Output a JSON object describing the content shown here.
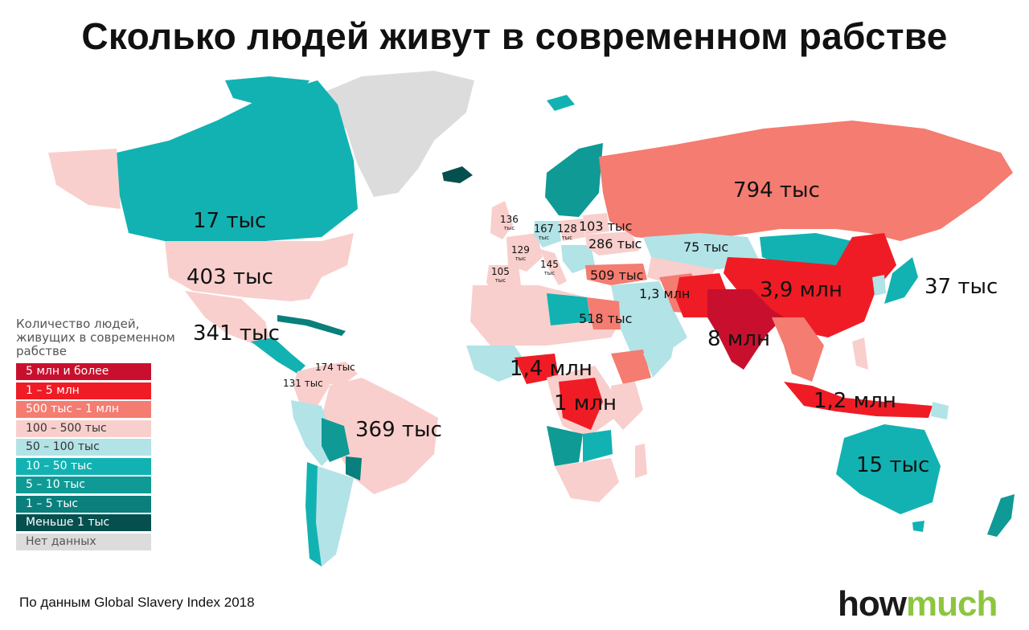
{
  "title": "Сколько людей живут в современном рабстве",
  "source": "По данным Global Slavery Index 2018",
  "brand": {
    "part1": "how",
    "part2": "much"
  },
  "legend": {
    "title": "Количество людей, живущих в современном рабстве",
    "items": [
      {
        "label": "5 млн и более",
        "color": "#c8102e",
        "text_color": "#ffffff"
      },
      {
        "label": "1 – 5 млн",
        "color": "#ef1c25",
        "text_color": "#ffffff"
      },
      {
        "label": "500 тыс – 1 млн",
        "color": "#f47c70",
        "text_color": "#ffffff"
      },
      {
        "label": "100 – 500 тыс",
        "color": "#f8cfcc",
        "text_color": "#333333"
      },
      {
        "label": "50 – 100 тыс",
        "color": "#b2e3e6",
        "text_color": "#333333"
      },
      {
        "label": "10 – 50 тыс",
        "color": "#12b2b2",
        "text_color": "#ffffff"
      },
      {
        "label": "5 – 10 тыс",
        "color": "#0f9a96",
        "text_color": "#ffffff"
      },
      {
        "label": "1 – 5 тыс",
        "color": "#0a7f7c",
        "text_color": "#ffffff"
      },
      {
        "label": "Меньше 1 тыс",
        "color": "#064f4f",
        "text_color": "#ffffff"
      },
      {
        "label": "Нет данных",
        "color": "#dcdcdc",
        "text_color": "#555555"
      }
    ]
  },
  "labels": [
    {
      "id": "russia",
      "text": "794 тыс"
    },
    {
      "id": "canada",
      "text": "17 тыс"
    },
    {
      "id": "usa",
      "text": "403 тыс"
    },
    {
      "id": "mexico",
      "text": "341 тыс"
    },
    {
      "id": "brazil",
      "text": "369 тыс"
    },
    {
      "id": "venezuela",
      "text": "174 тыс"
    },
    {
      "id": "colombia",
      "text": "131 тыс"
    },
    {
      "id": "uk",
      "text": "136",
      "unit": "тыс"
    },
    {
      "id": "germany",
      "text": "167",
      "unit": "тыс"
    },
    {
      "id": "poland",
      "text": "128",
      "unit": "тыс"
    },
    {
      "id": "belarus",
      "text": "103 тыс"
    },
    {
      "id": "ukraine",
      "text": "286 тыс"
    },
    {
      "id": "france",
      "text": "129",
      "unit": "тыс"
    },
    {
      "id": "italy",
      "text": "145",
      "unit": "тыс"
    },
    {
      "id": "spain",
      "text": "105",
      "unit": "тыс"
    },
    {
      "id": "kazakhstan",
      "text": "75 тыс"
    },
    {
      "id": "turkey",
      "text": "509 тыс"
    },
    {
      "id": "egypt",
      "text": "518 тыс"
    },
    {
      "id": "pakistan",
      "text": "1,3 млн"
    },
    {
      "id": "china",
      "text": "3,9 млн"
    },
    {
      "id": "india",
      "text": "8 млн"
    },
    {
      "id": "japan",
      "text": "37 тыс"
    },
    {
      "id": "nigeria",
      "text": "1,4 млн"
    },
    {
      "id": "drc",
      "text": "1 млн"
    },
    {
      "id": "indonesia",
      "text": "1,2 млн"
    },
    {
      "id": "australia",
      "text": "15 тыс"
    }
  ]
}
